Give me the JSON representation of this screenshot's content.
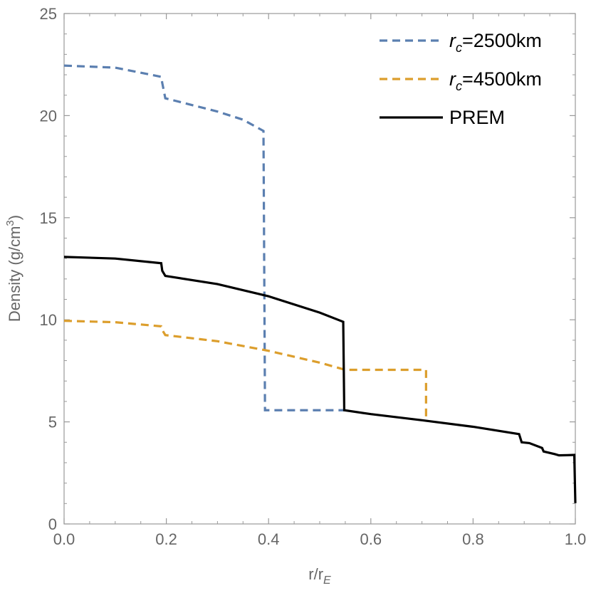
{
  "chart_data": {
    "type": "line",
    "xlabel": {
      "main": "r/r",
      "sub": "E"
    },
    "ylabel": {
      "main": "Density (g/cm",
      "sup": "3",
      "tail": ")"
    },
    "xlim": [
      0,
      1
    ],
    "ylim": [
      0,
      25
    ],
    "xticks": [
      "0.0",
      "0.2",
      "0.4",
      "0.6",
      "0.8",
      "1.0"
    ],
    "xtick_values": [
      0,
      0.2,
      0.4,
      0.6,
      0.8,
      1.0
    ],
    "yticks": [
      "0",
      "5",
      "10",
      "15",
      "20",
      "25"
    ],
    "ytick_values": [
      0,
      5,
      10,
      15,
      20,
      25
    ],
    "grid": false,
    "legend_position": "top-right",
    "series": [
      {
        "name": "r_c=2500km",
        "legend": {
          "italic": "r",
          "sub": "c",
          "rest": "=2500km"
        },
        "color": "#5b7fb0",
        "style": "dashed",
        "points": [
          [
            0.0,
            22.45
          ],
          [
            0.1,
            22.35
          ],
          [
            0.19,
            21.9
          ],
          [
            0.192,
            21.6
          ],
          [
            0.198,
            20.85
          ],
          [
            0.3,
            20.2
          ],
          [
            0.35,
            19.8
          ],
          [
            0.39,
            19.25
          ],
          [
            0.393,
            5.57
          ],
          [
            0.55,
            5.57
          ]
        ]
      },
      {
        "name": "r_c=4500km",
        "legend": {
          "italic": "r",
          "sub": "c",
          "rest": "=4500km"
        },
        "color": "#dc9e2c",
        "style": "dashed",
        "points": [
          [
            0.0,
            9.95
          ],
          [
            0.1,
            9.88
          ],
          [
            0.19,
            9.68
          ],
          [
            0.192,
            9.5
          ],
          [
            0.198,
            9.25
          ],
          [
            0.3,
            8.95
          ],
          [
            0.4,
            8.48
          ],
          [
            0.5,
            7.9
          ],
          [
            0.55,
            7.55
          ],
          [
            0.708,
            7.55
          ],
          [
            0.708,
            5.05
          ]
        ]
      },
      {
        "name": "PREM",
        "legend": {
          "italic": "",
          "sub": "",
          "rest": "PREM"
        },
        "color": "#000000",
        "style": "solid",
        "points": [
          [
            0.0,
            13.08
          ],
          [
            0.1,
            13.0
          ],
          [
            0.19,
            12.77
          ],
          [
            0.192,
            12.4
          ],
          [
            0.198,
            12.15
          ],
          [
            0.3,
            11.75
          ],
          [
            0.4,
            11.15
          ],
          [
            0.5,
            10.35
          ],
          [
            0.546,
            9.9
          ],
          [
            0.548,
            5.57
          ],
          [
            0.6,
            5.38
          ],
          [
            0.7,
            5.08
          ],
          [
            0.8,
            4.76
          ],
          [
            0.89,
            4.4
          ],
          [
            0.895,
            4.0
          ],
          [
            0.91,
            3.96
          ],
          [
            0.935,
            3.72
          ],
          [
            0.938,
            3.55
          ],
          [
            0.96,
            3.42
          ],
          [
            0.968,
            3.36
          ],
          [
            0.985,
            3.37
          ],
          [
            0.998,
            3.38
          ],
          [
            1.0,
            1.02
          ]
        ]
      }
    ]
  }
}
